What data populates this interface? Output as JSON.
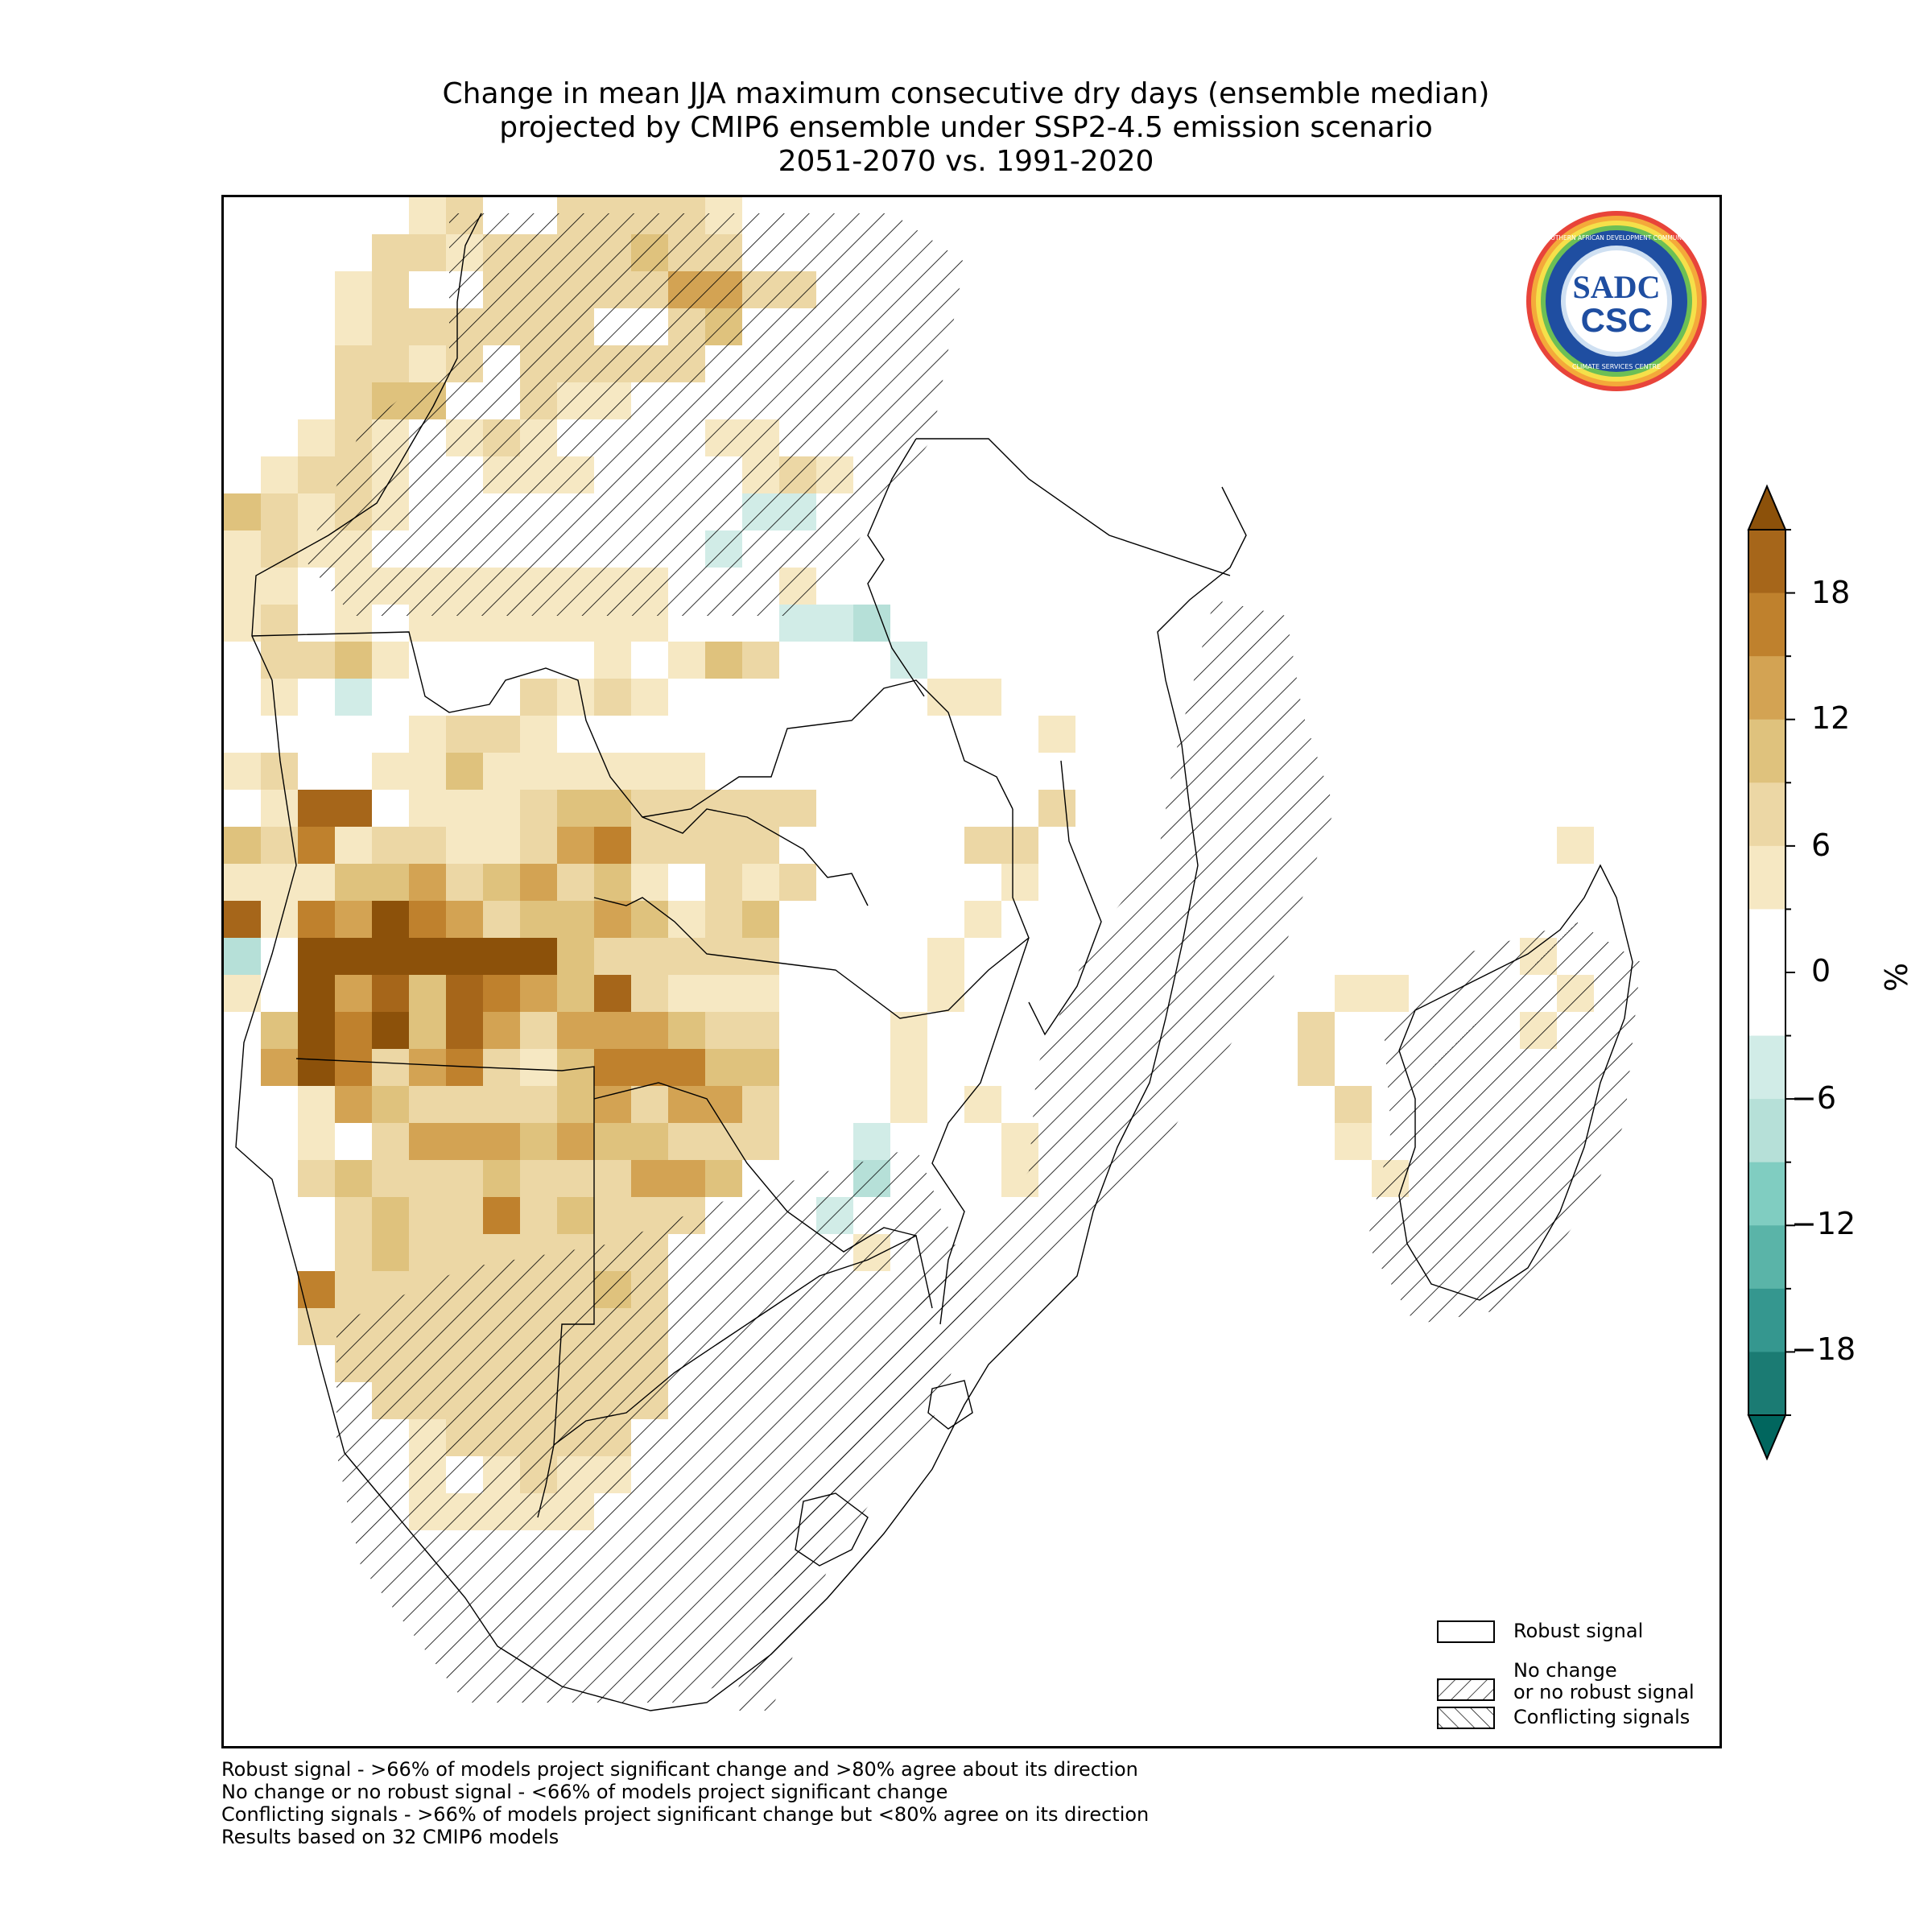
{
  "title": {
    "line1": "Change in mean JJA maximum consecutive dry days (ensemble median)",
    "line2": "projected by CMIP6 ensemble under SSP2-4.5 emission scenario",
    "line3": "2051-2070 vs. 1991-2020"
  },
  "logo": {
    "top_text": "SOUTHERN AFRICAN DEVELOPMENT COMMUNITY",
    "bottom_text": "CLIMATE SERVICES CENTRE",
    "sadc": "SADC",
    "csc": "CSC"
  },
  "legend": {
    "robust": "Robust signal",
    "no_change_line1": "No change",
    "no_change_line2": "or no robust signal",
    "conflicting": "Conflicting signals"
  },
  "colorbar": {
    "unit": "%",
    "ticks": [
      "18",
      "12",
      "6",
      "0",
      "−6",
      "−12",
      "−18"
    ],
    "colors": [
      "#8c510a",
      "#a6661a",
      "#bf812d",
      "#d3a353",
      "#dfc27d",
      "#ecd7a5",
      "#f6e8c3",
      "#ffffff",
      "#ffffff",
      "#d1ece7",
      "#b6e0d8",
      "#80cdc1",
      "#5ab4a8",
      "#35978f",
      "#1b7b73",
      "#01665e"
    ]
  },
  "footnotes": [
    "Robust signal - >66% of models project significant change and >80% agree about its direction",
    "No change or no robust signal - <66% of models project significant change",
    "Conflicting signals - >66% of models project significant change but <80% agree on its direction",
    "Results based on 32 CMIP6 models"
  ]
}
